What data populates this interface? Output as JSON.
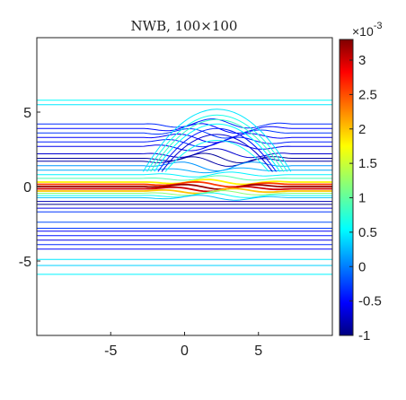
{
  "chart_data": {
    "type": "contour",
    "title": "NWB, 100×100",
    "xlabel": "",
    "ylabel": "",
    "xlim": [
      -10,
      10
    ],
    "ylim": [
      -10,
      10
    ],
    "x_ticks": [
      -5,
      0,
      5
    ],
    "y_ticks": [
      5,
      0,
      -5
    ],
    "x_tick_labels": [
      "-5",
      "0",
      "5"
    ],
    "y_tick_labels": [
      "5",
      "0",
      "-5"
    ],
    "colorbar": {
      "range": [
        -1,
        3.3
      ],
      "ticks": [
        3,
        2.5,
        2,
        1.5,
        1,
        0.5,
        0,
        -0.5,
        -1
      ],
      "tick_labels": [
        "3",
        "2.5",
        "2",
        "1.5",
        "1",
        "0.5",
        "0",
        "-0.5",
        "-1"
      ],
      "exponent_label": "×10",
      "exponent": "-3",
      "colormap": "jet"
    },
    "bump": {
      "center_x": 2.2,
      "half_width": 5,
      "top_y": 4.9
    },
    "bands": [
      {
        "y": 5.8,
        "level": 0.55
      },
      {
        "y": 5.5,
        "level": 0.45
      },
      {
        "y": 4.2,
        "level": -0.35
      },
      {
        "y": 3.9,
        "level": -0.5
      },
      {
        "y": 3.6,
        "level": -0.3
      },
      {
        "y": 3.3,
        "level": -0.55
      },
      {
        "y": 3.0,
        "level": -0.4
      },
      {
        "y": 2.7,
        "level": -0.6
      },
      {
        "y": 2.2,
        "level": -0.7
      },
      {
        "y": 1.9,
        "level": -0.9
      },
      {
        "y": 1.7,
        "level": -0.85
      },
      {
        "y": 1.4,
        "level": 0.1
      },
      {
        "y": 1.1,
        "level": 0.2
      },
      {
        "y": 0.8,
        "level": 0.5
      },
      {
        "y": 0.55,
        "level": 0.9
      },
      {
        "y": 0.3,
        "level": 1.8
      },
      {
        "y": 0.15,
        "level": 2.6
      },
      {
        "y": 0.0,
        "level": 3.2
      },
      {
        "y": -0.15,
        "level": 3.0
      },
      {
        "y": -0.3,
        "level": 2.0
      },
      {
        "y": -0.45,
        "level": 1.2
      },
      {
        "y": -0.6,
        "level": 0.6
      },
      {
        "y": -0.75,
        "level": 0.3
      },
      {
        "y": -1.0,
        "level": -0.8
      },
      {
        "y": -1.2,
        "level": -0.95
      },
      {
        "y": -1.45,
        "level": -0.6
      },
      {
        "y": -1.7,
        "level": -0.3
      },
      {
        "y": -2.4,
        "level": -0.2
      },
      {
        "y": -2.8,
        "level": -0.3
      },
      {
        "y": -3.0,
        "level": -0.55
      },
      {
        "y": -3.3,
        "level": -0.45
      },
      {
        "y": -3.6,
        "level": -0.6
      },
      {
        "y": -3.9,
        "level": -0.35
      },
      {
        "y": -4.2,
        "level": -0.5
      },
      {
        "y": -4.9,
        "level": 0.45
      },
      {
        "y": -5.3,
        "level": 0.35
      },
      {
        "y": -5.9,
        "level": 0.5
      }
    ],
    "arcs": [
      {
        "y_top": 5.2,
        "level": 0.45
      },
      {
        "y_top": 4.8,
        "level": 0.65
      },
      {
        "y_top": 4.5,
        "level": 0.8
      },
      {
        "y_top": 4.2,
        "level": 0.55
      },
      {
        "y_top": 3.9,
        "level": -0.4
      },
      {
        "y_top": 3.5,
        "level": -0.7
      },
      {
        "y_top": 3.1,
        "level": 0.6
      }
    ]
  }
}
